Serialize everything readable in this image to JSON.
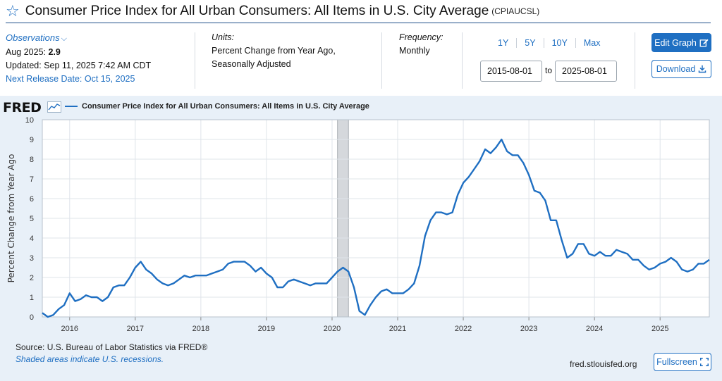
{
  "header": {
    "title": "Consumer Price Index for All Urban Consumers: All Items in U.S. City Average",
    "series_code": "(CPIAUCSL)"
  },
  "observations": {
    "label": "Observations",
    "latest_prefix": "Aug 2025:",
    "latest_value": "2.9",
    "updated": "Updated: Sep 11, 2025 7:42 AM CDT",
    "next_release": "Next Release Date: Oct 15, 2025"
  },
  "units": {
    "label": "Units:",
    "line1": "Percent Change from Year Ago,",
    "line2": "Seasonally Adjusted"
  },
  "frequency": {
    "label": "Frequency:",
    "value": "Monthly"
  },
  "range": {
    "buttons": [
      "1Y",
      "5Y",
      "10Y",
      "Max"
    ],
    "from": "2015-08-01",
    "to_label": "to",
    "to": "2025-08-01"
  },
  "actions": {
    "edit": "Edit Graph",
    "download": "Download",
    "fullscreen": "Fullscreen"
  },
  "footer": {
    "source": "Source: U.S. Bureau of Labor Statistics via FRED®",
    "shaded_note": "Shaded areas indicate U.S. recessions.",
    "site": "fred.stlouisfed.org"
  },
  "brand": {
    "logo": "FRED",
    "accent": "#1f6fc2"
  },
  "chart_data": {
    "type": "line",
    "title": "Consumer Price Index for All Urban Consumers: All Items in U.S. City Average",
    "ylabel": "Percent Change from Year Ago",
    "xlabel": "",
    "ylim": [
      0,
      10
    ],
    "yticks": [
      0,
      1,
      2,
      3,
      4,
      5,
      6,
      7,
      8,
      9,
      10
    ],
    "xticks": [
      "2016",
      "2017",
      "2018",
      "2019",
      "2020",
      "2021",
      "2022",
      "2023",
      "2024",
      "2025"
    ],
    "start": "2015-08",
    "end": "2025-08",
    "grid": true,
    "legend": "top-left",
    "recessions": [
      {
        "start": "2020-02",
        "end": "2020-04"
      }
    ],
    "series": [
      {
        "name": "Consumer Price Index for All Urban Consumers: All Items in U.S. City Average",
        "color": "#1f6fc2",
        "values": [
          0.2,
          0.0,
          0.1,
          0.4,
          0.6,
          1.2,
          0.8,
          0.9,
          1.1,
          1.0,
          1.0,
          0.8,
          1.0,
          1.5,
          1.6,
          1.6,
          2.0,
          2.5,
          2.8,
          2.4,
          2.2,
          1.9,
          1.7,
          1.6,
          1.7,
          1.9,
          2.1,
          2.0,
          2.1,
          2.1,
          2.1,
          2.2,
          2.3,
          2.4,
          2.7,
          2.8,
          2.8,
          2.8,
          2.6,
          2.3,
          2.5,
          2.2,
          2.0,
          1.5,
          1.5,
          1.8,
          1.9,
          1.8,
          1.7,
          1.6,
          1.7,
          1.7,
          1.7,
          2.0,
          2.3,
          2.5,
          2.3,
          1.5,
          0.3,
          0.1,
          0.6,
          1.0,
          1.3,
          1.4,
          1.2,
          1.2,
          1.2,
          1.4,
          1.7,
          2.6,
          4.1,
          4.9,
          5.3,
          5.3,
          5.2,
          5.3,
          6.2,
          6.8,
          7.1,
          7.5,
          7.9,
          8.5,
          8.3,
          8.6,
          9.0,
          8.4,
          8.2,
          8.2,
          7.8,
          7.2,
          6.4,
          6.3,
          5.9,
          4.9,
          4.9,
          3.9,
          3.0,
          3.2,
          3.7,
          3.7,
          3.2,
          3.1,
          3.3,
          3.1,
          3.1,
          3.4,
          3.3,
          3.2,
          2.9,
          2.9,
          2.6,
          2.4,
          2.5,
          2.7,
          2.8,
          3.0,
          2.8,
          2.4,
          2.3,
          2.4,
          2.7,
          2.7,
          2.9
        ]
      }
    ]
  }
}
